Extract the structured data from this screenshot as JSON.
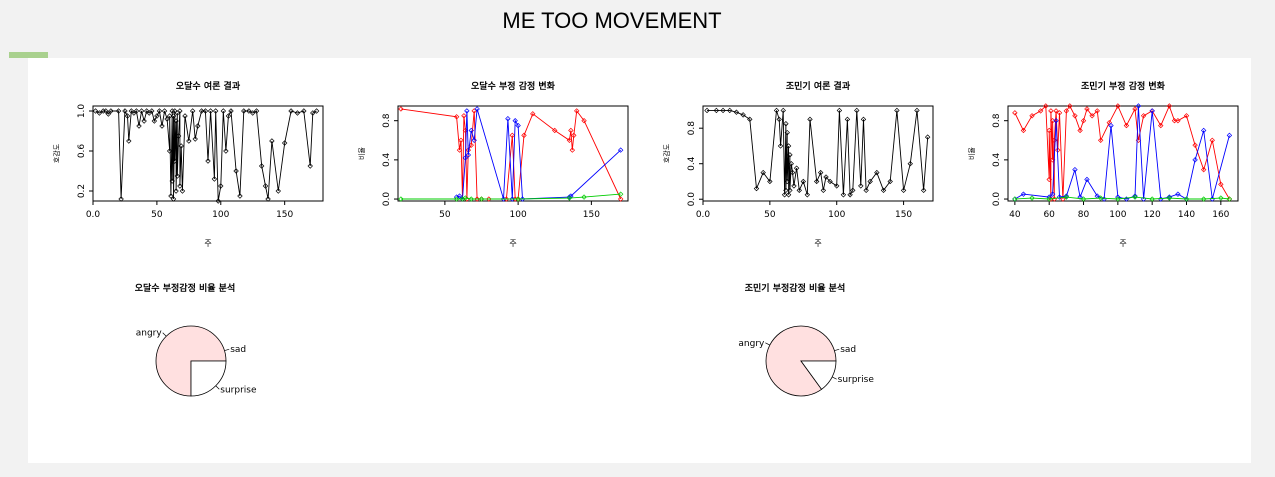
{
  "header": {
    "title": "ME TOO MOVEMENT",
    "accent_color": "#a9d18e"
  },
  "chart_data": [
    {
      "type": "line",
      "title": "오달수  여론 결과",
      "xlabel": "주",
      "ylabel": "호감도",
      "xlim": [
        0,
        180
      ],
      "ylim": [
        0.1,
        1.05
      ],
      "xticks": [
        0,
        50,
        100,
        150
      ],
      "yticks": [
        0.2,
        0.6,
        1.0
      ],
      "series": [
        {
          "color": "#000000",
          "x": [
            2,
            5,
            8,
            10,
            12,
            14,
            20,
            22,
            25,
            27,
            28,
            30,
            32,
            34,
            36,
            38,
            40,
            42,
            44,
            46,
            48,
            50,
            52,
            54,
            56,
            58,
            60,
            60,
            61,
            62,
            62,
            63,
            63,
            64,
            64,
            65,
            65,
            66,
            66,
            67,
            68,
            68,
            69,
            70,
            72,
            75,
            78,
            80,
            82,
            85,
            88,
            90,
            92,
            95,
            96,
            98,
            100,
            102,
            104,
            106,
            108,
            112,
            115,
            118,
            122,
            125,
            128,
            132,
            135,
            137,
            140,
            145,
            150,
            155,
            160,
            165,
            170,
            172,
            175
          ],
          "y": [
            1.0,
            0.98,
            1.0,
            1.0,
            0.97,
            1.0,
            1.0,
            0.12,
            1.0,
            0.95,
            0.7,
            1.0,
            0.98,
            1.0,
            0.85,
            1.0,
            0.9,
            1.0,
            0.98,
            1.0,
            0.9,
            0.95,
            1.0,
            0.85,
            1.0,
            0.92,
            0.6,
            0.95,
            0.15,
            1.0,
            0.3,
            0.95,
            0.12,
            1.0,
            0.5,
            0.9,
            0.2,
            0.98,
            0.35,
            0.75,
            1.0,
            0.25,
            0.65,
            0.2,
            0.95,
            0.7,
            1.0,
            0.72,
            0.85,
            1.0,
            1.0,
            0.5,
            1.0,
            0.32,
            1.0,
            0.1,
            0.25,
            1.0,
            0.6,
            0.95,
            1.0,
            0.4,
            0.15,
            1.0,
            1.0,
            0.98,
            1.0,
            0.45,
            0.25,
            0.12,
            0.7,
            0.2,
            0.68,
            1.0,
            0.98,
            1.0,
            0.45,
            0.98,
            1.0
          ]
        }
      ]
    },
    {
      "type": "line",
      "title": "오달수  부정 감정 변화",
      "xlabel": "주",
      "ylabel": "비율",
      "xlim": [
        18,
        175
      ],
      "ylim": [
        -0.02,
        0.95
      ],
      "xticks": [
        50,
        100,
        150
      ],
      "yticks": [
        0.0,
        0.4,
        0.8
      ],
      "series": [
        {
          "color": "#ff0000",
          "x": [
            20,
            58,
            60,
            61,
            62,
            63,
            64,
            65,
            66,
            68,
            70,
            72,
            75,
            80,
            92,
            96,
            98,
            100,
            104,
            110,
            125,
            135,
            136,
            137,
            138,
            140,
            145,
            170
          ],
          "y": [
            0.92,
            0.84,
            0.5,
            0.6,
            0.0,
            0.85,
            0.7,
            0.0,
            0.5,
            0.55,
            0.9,
            0.0,
            0.0,
            0.0,
            0.0,
            0.65,
            0.0,
            0.0,
            0.65,
            0.87,
            0.7,
            0.6,
            0.7,
            0.5,
            0.65,
            0.9,
            0.8,
            0.0
          ]
        },
        {
          "color": "#0000ff",
          "x": [
            58,
            60,
            62,
            64,
            65,
            66,
            68,
            70,
            72,
            90,
            93,
            96,
            98,
            100,
            103,
            135,
            136,
            170
          ],
          "y": [
            0.02,
            0.03,
            0.0,
            0.42,
            0.9,
            0.45,
            0.7,
            0.6,
            0.92,
            0.0,
            0.82,
            0.0,
            0.8,
            0.75,
            0.0,
            0.02,
            0.03,
            0.5
          ]
        },
        {
          "color": "#00cc00",
          "x": [
            20,
            58,
            62,
            64,
            68,
            75,
            100,
            135,
            145,
            170
          ],
          "y": [
            0.0,
            0.0,
            0.0,
            0.01,
            0.0,
            0.0,
            0.0,
            0.01,
            0.02,
            0.05
          ]
        }
      ]
    },
    {
      "type": "line",
      "title": "조민기  여론 결과",
      "xlabel": "주",
      "ylabel": "호감도",
      "xlim": [
        0,
        172
      ],
      "ylim": [
        -0.02,
        1.05
      ],
      "xticks": [
        0,
        50,
        100,
        150
      ],
      "yticks": [
        0.0,
        0.4,
        0.8
      ],
      "series": [
        {
          "color": "#000000",
          "x": [
            3,
            10,
            15,
            20,
            25,
            30,
            35,
            40,
            45,
            50,
            55,
            57,
            58,
            60,
            61,
            62,
            62,
            63,
            63,
            64,
            64,
            65,
            65,
            66,
            67,
            68,
            70,
            72,
            75,
            78,
            80,
            85,
            88,
            90,
            92,
            95,
            100,
            102,
            105,
            108,
            110,
            112,
            115,
            118,
            120,
            122,
            125,
            130,
            135,
            140,
            145,
            150,
            155,
            160,
            165,
            168
          ],
          "y": [
            1.0,
            1.0,
            1.0,
            1.0,
            0.98,
            0.95,
            0.9,
            0.12,
            0.3,
            0.2,
            1.0,
            0.9,
            0.6,
            1.0,
            0.05,
            0.85,
            0.1,
            0.75,
            0.2,
            0.6,
            0.05,
            0.5,
            0.1,
            0.4,
            0.3,
            0.15,
            0.35,
            0.1,
            0.2,
            0.05,
            0.9,
            0.2,
            0.3,
            0.1,
            0.25,
            0.2,
            0.15,
            1.0,
            0.05,
            0.9,
            0.05,
            0.1,
            1.0,
            0.15,
            0.9,
            0.1,
            0.2,
            0.3,
            0.1,
            0.2,
            1.0,
            0.1,
            0.4,
            1.0,
            0.1,
            0.7
          ]
        }
      ]
    },
    {
      "type": "line",
      "title": "조민기  부정 감정 변화",
      "xlabel": "주",
      "ylabel": "비율",
      "xlim": [
        36,
        170
      ],
      "ylim": [
        -0.02,
        0.95
      ],
      "xticks": [
        40,
        60,
        80,
        100,
        120,
        140,
        160
      ],
      "yticks": [
        0.0,
        0.4,
        0.8
      ],
      "series": [
        {
          "color": "#ff0000",
          "x": [
            40,
            45,
            50,
            55,
            58,
            60,
            60,
            61,
            61,
            62,
            62,
            63,
            63,
            64,
            65,
            66,
            68,
            70,
            72,
            75,
            78,
            80,
            82,
            85,
            88,
            90,
            95,
            100,
            105,
            110,
            112,
            115,
            120,
            125,
            130,
            133,
            135,
            140,
            145,
            150,
            155,
            160,
            165
          ],
          "y": [
            0.88,
            0.7,
            0.85,
            0.9,
            0.95,
            0.2,
            0.7,
            0.0,
            0.9,
            0.4,
            0.8,
            0.0,
            0.6,
            0.9,
            0.5,
            0.88,
            0.0,
            0.9,
            0.95,
            0.85,
            0.7,
            0.8,
            0.92,
            0.85,
            0.9,
            0.6,
            0.78,
            0.95,
            0.75,
            0.92,
            0.6,
            0.85,
            0.9,
            0.75,
            0.95,
            0.8,
            0.8,
            0.85,
            0.55,
            0.3,
            0.6,
            0.15,
            0.0
          ]
        },
        {
          "color": "#0000ff",
          "x": [
            40,
            45,
            60,
            62,
            64,
            66,
            70,
            75,
            78,
            82,
            88,
            92,
            96,
            100,
            105,
            110,
            112,
            115,
            120,
            125,
            130,
            135,
            140,
            145,
            150,
            155,
            165
          ],
          "y": [
            0.0,
            0.05,
            0.02,
            0.05,
            0.8,
            0.02,
            0.03,
            0.3,
            0.02,
            0.2,
            0.03,
            0.0,
            0.75,
            0.02,
            0.0,
            0.03,
            0.95,
            0.0,
            0.9,
            0.0,
            0.02,
            0.05,
            0.0,
            0.4,
            0.7,
            0.0,
            0.65
          ]
        },
        {
          "color": "#00cc00",
          "x": [
            40,
            50,
            60,
            70,
            80,
            90,
            100,
            110,
            120,
            130,
            140,
            150,
            160,
            165
          ],
          "y": [
            0.0,
            0.01,
            0.0,
            0.02,
            0.0,
            0.01,
            0.0,
            0.02,
            0.0,
            0.01,
            0.0,
            0.0,
            0.01,
            0.0
          ]
        }
      ]
    },
    {
      "type": "pie",
      "title": "오달수  부정감정 비율 분석",
      "labels": [
        "angry",
        "surprise",
        "sad"
      ],
      "values": [
        0.75,
        0.25,
        0.0
      ],
      "colors": [
        "#ffe0e0",
        "#ffffff",
        "#ffffff"
      ]
    },
    {
      "type": "pie",
      "title": "조민기  부정감정 비율 분석",
      "labels": [
        "angry",
        "surprise",
        "sad"
      ],
      "values": [
        0.85,
        0.15,
        0.0
      ],
      "colors": [
        "#ffe0e0",
        "#ffffff",
        "#ffffff"
      ]
    }
  ]
}
